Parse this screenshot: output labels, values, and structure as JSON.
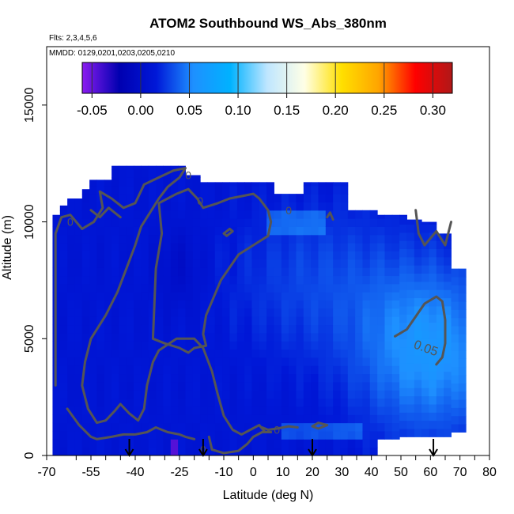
{
  "chart_data": {
    "type": "heatmap",
    "title": "ATOM2 Southbound WS_Abs_380nm",
    "subtitle_flights": "Flts: 2,3,4,5,6",
    "subtitle_dates": "MMDD: 0129,0201,0203,0205,0210",
    "xlabel": "Latitude (deg N)",
    "ylabel": "Altitude (m)",
    "xlim": [
      -70,
      80
    ],
    "ylim": [
      0,
      17500
    ],
    "x_ticks_labeled": [
      -70,
      -55,
      -40,
      -25,
      -10,
      0,
      10,
      20,
      30,
      40,
      50,
      60,
      70,
      80
    ],
    "x_tick_labels": [
      "-70",
      "-55",
      "-40",
      "-25",
      "-10",
      "0",
      "10",
      "20",
      "30",
      "40",
      "50",
      "60",
      "70",
      "80"
    ],
    "x_minor_ticks": [
      -60,
      -50,
      -45,
      -35,
      -30,
      -20,
      -15,
      -5,
      5,
      15,
      25,
      35,
      45,
      55,
      65,
      75
    ],
    "y_ticks": [
      0,
      5000,
      10000,
      15000
    ],
    "y_tick_labels": [
      "0",
      "5000",
      "10000",
      "15000"
    ],
    "colorbar": {
      "range": [
        -0.06,
        0.32
      ],
      "ticks": [
        -0.05,
        0.0,
        0.05,
        0.1,
        0.15,
        0.2,
        0.25,
        0.3
      ],
      "tick_labels": [
        "-0.05",
        "0.00",
        "0.05",
        "0.10",
        "0.15",
        "0.20",
        "0.25",
        "0.30"
      ],
      "stops": [
        "#8b1cf0",
        "#0000b0",
        "#0018d8",
        "#1e90ff",
        "#00b2ff",
        "#bfe6ff",
        "#ffffe6",
        "#ffe000",
        "#ffa500",
        "#ff0000",
        "#b01818"
      ]
    },
    "contour_labels": [
      {
        "text": "0",
        "lat": -22,
        "alt": 12000
      },
      {
        "text": "0",
        "lat": -18,
        "alt": 10900
      },
      {
        "text": "0",
        "lat": -62,
        "alt": 10000
      },
      {
        "text": "0",
        "lat": 12,
        "alt": 10500
      },
      {
        "text": "0",
        "lat": 8,
        "alt": 1100
      },
      {
        "text": "0",
        "lat": -17,
        "alt": 250
      },
      {
        "text": "0.05",
        "lat": 58,
        "alt": 4600
      }
    ],
    "flight_markers_lat": [
      -42,
      -17,
      20,
      61
    ]
  }
}
